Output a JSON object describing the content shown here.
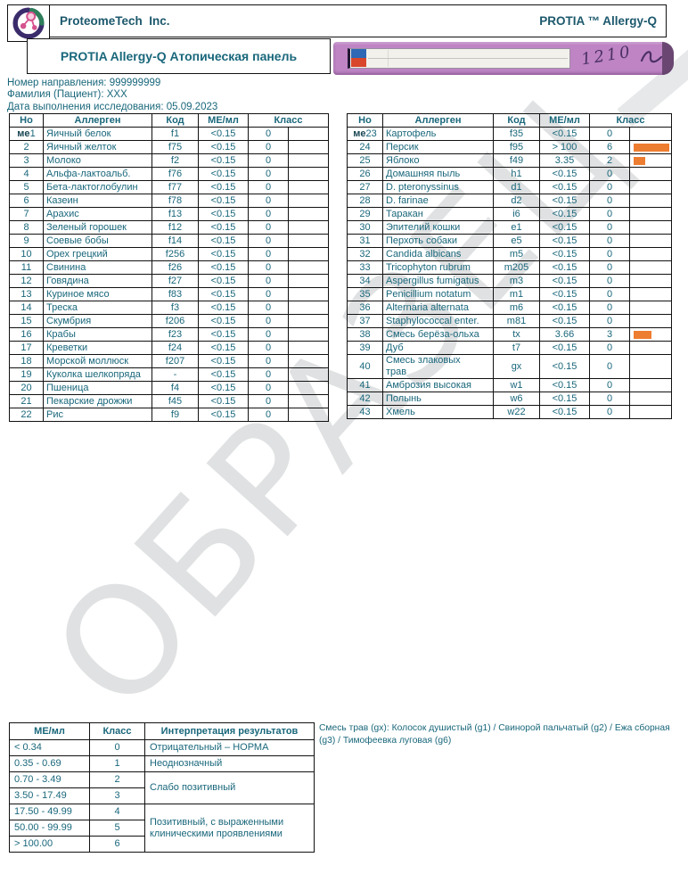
{
  "watermark": "ОБРАЗЕЦ",
  "colors": {
    "teal_text": "#1A6578",
    "bar_orange": "#ED7D31",
    "strip_purple": "#BE84C4",
    "watermark_gray": "#ADB2B5"
  },
  "header": {
    "company": "ProteomeTech  Inc.",
    "product": "PROTIA ™ Allergy-Q",
    "panel_title": "PROTIA Allergy-Q Атопическая панель",
    "logo": "proteometech-logo",
    "strip_handwriting": "1210"
  },
  "patient": {
    "referral": "Номер направления: 999999999",
    "name": "Фамилия (Пациент): XXX",
    "date": "Дата выполнения исследования: 05.09.2023"
  },
  "results": {
    "columns": {
      "no": "Но",
      "allergen": "Аллерген",
      "code": "Код",
      "unit": "МЕ/мл",
      "class": "Класс"
    },
    "left_rows": [
      {
        "prefix": "ме",
        "no": "1",
        "allergen": "Яичный белок",
        "code": "f1",
        "value": "<0.15",
        "cls": "0"
      },
      {
        "no": "2",
        "allergen": "Яичный желток",
        "code": "f75",
        "value": "<0.15",
        "cls": "0"
      },
      {
        "no": "3",
        "allergen": "Молоко",
        "code": "f2",
        "value": "<0.15",
        "cls": "0"
      },
      {
        "no": "4",
        "allergen": "Альфа-лактоальб.",
        "code": "f76",
        "value": "<0.15",
        "cls": "0"
      },
      {
        "no": "5",
        "allergen": "Бета-лактоглобулин",
        "code": "f77",
        "value": "<0.15",
        "cls": "0"
      },
      {
        "no": "6",
        "allergen": "Казеин",
        "code": "f78",
        "value": "<0.15",
        "cls": "0"
      },
      {
        "no": "7",
        "allergen": "Арахис",
        "code": "f13",
        "value": "<0.15",
        "cls": "0"
      },
      {
        "no": "8",
        "allergen": "Зеленый горошек",
        "code": "f12",
        "value": "<0.15",
        "cls": "0"
      },
      {
        "no": "9",
        "allergen": "Соевые бобы",
        "code": "f14",
        "value": "<0.15",
        "cls": "0"
      },
      {
        "no": "10",
        "allergen": "Орех грецкий",
        "code": "f256",
        "value": "<0.15",
        "cls": "0"
      },
      {
        "no": "11",
        "allergen": "Свинина",
        "code": "f26",
        "value": "<0.15",
        "cls": "0"
      },
      {
        "no": "12",
        "allergen": "Говядина",
        "code": "f27",
        "value": "<0.15",
        "cls": "0"
      },
      {
        "no": "13",
        "allergen": "Куриное мясо",
        "code": "f83",
        "value": "<0.15",
        "cls": "0"
      },
      {
        "no": "14",
        "allergen": "Треска",
        "code": "f3",
        "value": "<0.15",
        "cls": "0"
      },
      {
        "no": "15",
        "allergen": "Скумбрия",
        "code": "f206",
        "value": "<0.15",
        "cls": "0"
      },
      {
        "no": "16",
        "allergen": "Крабы",
        "code": "f23",
        "value": "<0.15",
        "cls": "0"
      },
      {
        "no": "17",
        "allergen": "Креветки",
        "code": "f24",
        "value": "<0.15",
        "cls": "0"
      },
      {
        "no": "18",
        "allergen": "Морской моллюск",
        "code": "f207",
        "value": "<0.15",
        "cls": "0"
      },
      {
        "no": "19",
        "allergen": "Куколка шелкопряда",
        "code": "-",
        "value": "<0.15",
        "cls": "0"
      },
      {
        "no": "20",
        "allergen": "Пшеница",
        "code": "f4",
        "value": "<0.15",
        "cls": "0"
      },
      {
        "no": "21",
        "allergen": "Пекарские дрожжи",
        "code": "f45",
        "value": "<0.15",
        "cls": "0"
      },
      {
        "no": "22",
        "allergen": "Рис",
        "code": "f9",
        "value": "<0.15",
        "cls": "0"
      }
    ],
    "right_rows": [
      {
        "prefix": "ме",
        "no": "23",
        "allergen": "Картофель",
        "code": "f35",
        "value": "<0.15",
        "cls": "0"
      },
      {
        "no": "24",
        "allergen": "Персик",
        "code": "f95",
        "value": "> 100",
        "cls": "6"
      },
      {
        "no": "25",
        "allergen": "Яблоко",
        "code": "f49",
        "value": "3.35",
        "cls": "2"
      },
      {
        "no": "26",
        "allergen": "Домашняя пыль",
        "code": "h1",
        "value": "<0.15",
        "cls": "0"
      },
      {
        "no": "27",
        "allergen": "D. pteronyssinus",
        "code": "d1",
        "value": "<0.15",
        "cls": "0"
      },
      {
        "no": "28",
        "allergen": "D. farinae",
        "code": "d2",
        "value": "<0.15",
        "cls": "0"
      },
      {
        "no": "29",
        "allergen": "Таракан",
        "code": "i6",
        "value": "<0.15",
        "cls": "0"
      },
      {
        "no": "30",
        "allergen": "Эпителий кошки",
        "code": "e1",
        "value": "<0.15",
        "cls": "0"
      },
      {
        "no": "31",
        "allergen": "Перхоть собаки",
        "code": "e5",
        "value": "<0.15",
        "cls": "0"
      },
      {
        "no": "32",
        "allergen": "Candida albicans",
        "code": "m5",
        "value": "<0.15",
        "cls": "0"
      },
      {
        "no": "33",
        "allergen": "Tricophyton rubrum",
        "code": "m205",
        "value": "<0.15",
        "cls": "0"
      },
      {
        "no": "34",
        "allergen": "Aspergillus fumigatus",
        "code": "m3",
        "value": "<0.15",
        "cls": "0"
      },
      {
        "no": "35",
        "allergen": "Penicillium notatum",
        "code": "m1",
        "value": "<0.15",
        "cls": "0"
      },
      {
        "no": "36",
        "allergen": "Alternaria alternata",
        "code": "m6",
        "value": "<0.15",
        "cls": "0"
      },
      {
        "no": "37",
        "allergen": "Staphylococcal enter.",
        "code": "m81",
        "value": "<0.15",
        "cls": "0"
      },
      {
        "no": "38",
        "allergen": "Смесь берёза-ольха",
        "code": "tx",
        "value": "3.66",
        "cls": "3"
      },
      {
        "no": "39",
        "allergen": "Дуб",
        "code": "t7",
        "value": "<0.15",
        "cls": "0"
      },
      {
        "no": "40",
        "allergen": "Смесь злаковых\nтрав",
        "code": "gx",
        "value": "<0.15",
        "cls": "0"
      },
      {
        "no": "41",
        "allergen": "Амброзия высокая",
        "code": "w1",
        "value": "<0.15",
        "cls": "0"
      },
      {
        "no": "42",
        "allergen": "Полынь",
        "code": "w6",
        "value": "<0.15",
        "cls": "0"
      },
      {
        "no": "43",
        "allergen": "Хмель",
        "code": "w22",
        "value": "<0.15",
        "cls": "0"
      }
    ]
  },
  "interpretation": {
    "columns": {
      "range": "МЕ/мл",
      "class": "Класс",
      "meaning": "Интерпретация результатов"
    },
    "rows": [
      {
        "range": "< 0.34",
        "cls": "0",
        "meaning": "Отрицательный – НОРМА",
        "span": 1
      },
      {
        "range": "0.35 - 0.69",
        "cls": "1",
        "meaning": "Неоднозначный",
        "span": 1
      },
      {
        "range": "0.70 - 3.49",
        "cls": "2",
        "meaning": "Слабо позитивный",
        "span": 2
      },
      {
        "range": "3.50 - 17.49",
        "cls": "3"
      },
      {
        "range": "17.50 - 49.99",
        "cls": "4",
        "meaning": "Позитивный, с выраженными\nклиническими проявлениями",
        "span": 3
      },
      {
        "range": "50.00 - 99.99",
        "cls": "5"
      },
      {
        "range": "> 100.00",
        "cls": "6"
      }
    ]
  },
  "footnote": "Смесь трав (gx): Колосок душистый (g1) / Свинорой пальчатый (g2) / Ежа сборная (g3) / Тимофеевка луговая (g6)"
}
